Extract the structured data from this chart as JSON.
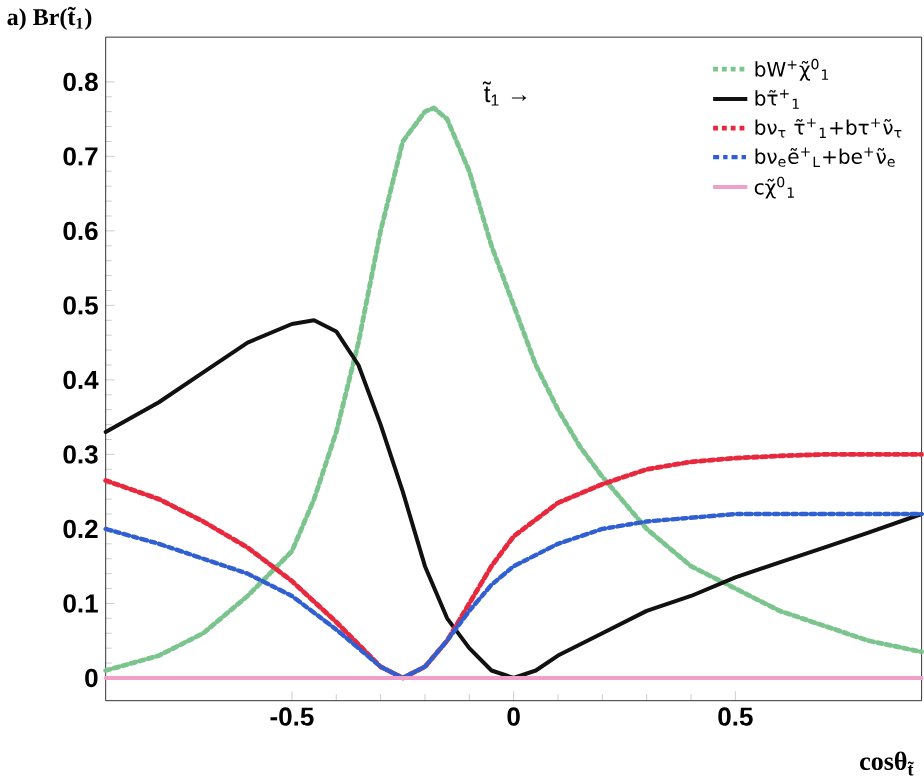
{
  "chart_data": {
    "type": "line",
    "title": "a) Br(t̃$_{1}$)",
    "xlabel": "cosθ$_{t̃}$",
    "annotations": [
      "t̃$_{1}$ →"
    ],
    "xlim": [
      -0.92,
      0.92
    ],
    "ylim": [
      -0.03,
      0.86
    ],
    "xticks": [
      -0.5,
      0,
      0.5
    ],
    "yticks": [
      0,
      0.1,
      0.2,
      0.3,
      0.4,
      0.5,
      0.6,
      0.7,
      0.8
    ],
    "legend": "top right",
    "series": [
      {
        "name": "bW$^{+}$χ̃$^{0}$$_{1}$",
        "color": "#7cc48e",
        "line_style": "dotted",
        "x": [
          -0.92,
          -0.8,
          -0.7,
          -0.6,
          -0.5,
          -0.45,
          -0.4,
          -0.35,
          -0.3,
          -0.25,
          -0.2,
          -0.18,
          -0.15,
          -0.1,
          -0.05,
          0,
          0.05,
          0.1,
          0.15,
          0.2,
          0.3,
          0.4,
          0.5,
          0.6,
          0.7,
          0.8,
          0.92
        ],
        "values": [
          0.01,
          0.03,
          0.06,
          0.11,
          0.17,
          0.24,
          0.33,
          0.45,
          0.6,
          0.72,
          0.76,
          0.765,
          0.75,
          0.68,
          0.58,
          0.5,
          0.42,
          0.36,
          0.31,
          0.27,
          0.2,
          0.15,
          0.12,
          0.09,
          0.07,
          0.05,
          0.035
        ]
      },
      {
        "name": "bτ̃$^{+}$$_{1}$",
        "color": "#111111",
        "line_style": "solid",
        "x": [
          -0.92,
          -0.8,
          -0.7,
          -0.6,
          -0.5,
          -0.45,
          -0.4,
          -0.35,
          -0.3,
          -0.25,
          -0.2,
          -0.15,
          -0.1,
          -0.05,
          0,
          0.05,
          0.1,
          0.2,
          0.3,
          0.4,
          0.5,
          0.6,
          0.7,
          0.8,
          0.92
        ],
        "values": [
          0.33,
          0.37,
          0.41,
          0.45,
          0.475,
          0.48,
          0.465,
          0.42,
          0.34,
          0.25,
          0.15,
          0.08,
          0.04,
          0.01,
          0,
          0.01,
          0.03,
          0.06,
          0.09,
          0.11,
          0.135,
          0.155,
          0.175,
          0.195,
          0.22
        ]
      },
      {
        "name": "bν$_{τ}$ τ̃$^{+}$$_{1}$+bτ$^{+}$ν̃$_{τ}$",
        "color": "#e8283c",
        "line_style": "dotted",
        "x": [
          -0.92,
          -0.8,
          -0.7,
          -0.6,
          -0.5,
          -0.4,
          -0.35,
          -0.3,
          -0.25,
          -0.2,
          -0.15,
          -0.1,
          -0.05,
          0,
          0.1,
          0.2,
          0.3,
          0.4,
          0.5,
          0.6,
          0.7,
          0.8,
          0.92
        ],
        "values": [
          0.265,
          0.24,
          0.21,
          0.175,
          0.13,
          0.075,
          0.045,
          0.015,
          0,
          0.015,
          0.05,
          0.1,
          0.15,
          0.19,
          0.235,
          0.26,
          0.28,
          0.29,
          0.295,
          0.298,
          0.3,
          0.3,
          0.3
        ]
      },
      {
        "name": "bν$_{e}$ẽ$^{+}$$_{L}$+be$^{+}$ν̃$_{e}$",
        "color": "#2f5fd0",
        "line_style": "dashed",
        "x": [
          -0.92,
          -0.8,
          -0.7,
          -0.6,
          -0.5,
          -0.4,
          -0.35,
          -0.3,
          -0.25,
          -0.2,
          -0.15,
          -0.1,
          -0.05,
          0,
          0.1,
          0.2,
          0.3,
          0.4,
          0.5,
          0.6,
          0.7,
          0.8,
          0.92
        ],
        "values": [
          0.2,
          0.18,
          0.16,
          0.14,
          0.11,
          0.065,
          0.04,
          0.015,
          0,
          0.015,
          0.05,
          0.09,
          0.125,
          0.15,
          0.18,
          0.2,
          0.21,
          0.215,
          0.22,
          0.22,
          0.22,
          0.22,
          0.22
        ]
      },
      {
        "name": "cχ̃$^{0}$$_{1}$",
        "color": "#f0a0c8",
        "line_style": "solid",
        "x": [
          -0.92,
          0.92
        ],
        "values": [
          0,
          0
        ]
      }
    ]
  }
}
